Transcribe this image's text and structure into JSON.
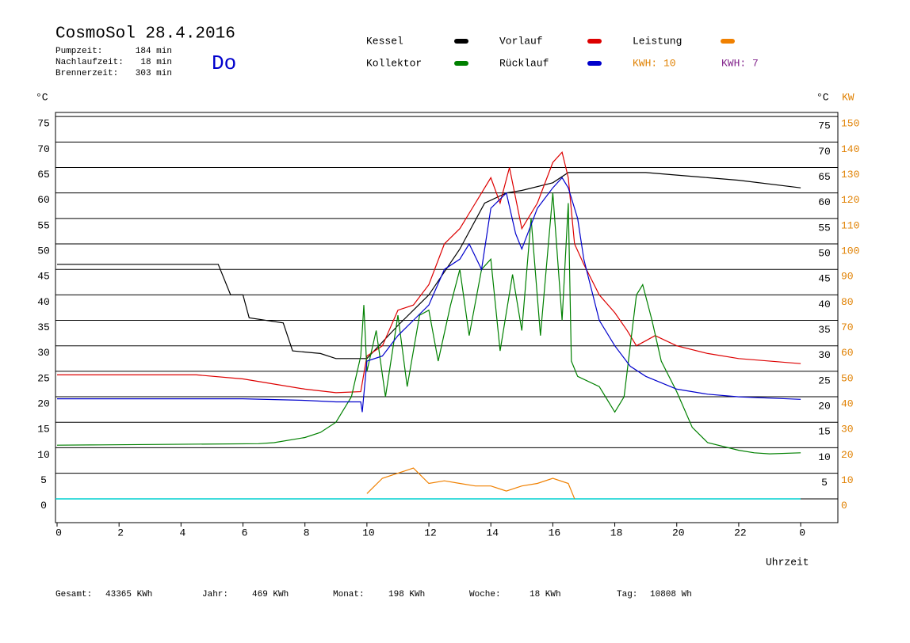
{
  "header": {
    "title": "CosmoSol 28.4.2016",
    "day": "Do",
    "stats": [
      {
        "label": "Pumpzeit:",
        "value": "184 min"
      },
      {
        "label": "Nachlaufzeit:",
        "value": "18 min"
      },
      {
        "label": "Brennerzeit:",
        "value": "303 min"
      }
    ],
    "kwh": [
      {
        "text": "KWH: 10",
        "color": "#e08000"
      },
      {
        "text": "KWH: 7",
        "color": "#80208a"
      }
    ]
  },
  "footer": [
    {
      "label": "Gesamt:",
      "value": "43365 KWh"
    },
    {
      "label": "Jahr:",
      "value": "469 KWh"
    },
    {
      "label": "Monat:",
      "value": "198 KWh"
    },
    {
      "label": "Woche:",
      "value": "18 KWh"
    },
    {
      "label": "Tag:",
      "value": "10808 Wh"
    }
  ],
  "chart_data": {
    "type": "line",
    "ylabel": "°C",
    "y2label_left": "°C",
    "y2label": "KW",
    "xlabel": "Uhrzeit",
    "xlim": [
      0,
      25.2
    ],
    "ylim": [
      -4.7,
      75.8
    ],
    "y2lim": [
      -9.4,
      151.6
    ],
    "xticks": [
      0,
      2,
      4,
      6,
      8,
      10,
      12,
      14,
      16,
      18,
      20,
      22,
      {
        "value": 24,
        "label": "0"
      }
    ],
    "yticks": [
      0,
      5,
      10,
      15,
      20,
      25,
      30,
      35,
      40,
      45,
      50,
      55,
      60,
      65,
      70,
      75
    ],
    "yticks_right": [
      5,
      10,
      15,
      20,
      25,
      30,
      35,
      40,
      45,
      50,
      55,
      60,
      65,
      70,
      75
    ],
    "y2ticks": [
      0,
      10,
      20,
      30,
      40,
      50,
      60,
      70,
      80,
      90,
      100,
      110,
      120,
      130,
      140,
      150
    ],
    "grid": true,
    "series": [
      {
        "name": "Kessel",
        "color": "#000000",
        "x": [
          0,
          5.2,
          5.6,
          6,
          6.2,
          7.3,
          7.6,
          8.5,
          9,
          10,
          11,
          12,
          13,
          13.8,
          14.5,
          15,
          16,
          16.5,
          17,
          19,
          20,
          21,
          22,
          24
        ],
        "values": [
          46,
          46,
          40,
          40,
          35.5,
          34.5,
          29,
          28.5,
          27.5,
          27.5,
          34,
          40,
          49,
          58,
          60,
          60.5,
          62,
          64,
          64,
          64,
          63.5,
          63,
          62.5,
          61
        ]
      },
      {
        "name": "Vorlauf",
        "color": "#dd0000",
        "x": [
          0,
          4.5,
          6,
          8,
          9,
          9.8,
          10,
          10.5,
          11,
          11.5,
          12,
          12.5,
          13,
          13.5,
          14,
          14.3,
          14.6,
          15,
          15.5,
          16,
          16.3,
          16.5,
          16.7,
          17,
          17.5,
          18,
          18.4,
          18.7,
          19,
          19.3,
          20,
          21,
          22,
          24
        ],
        "values": [
          24.3,
          24.3,
          23.5,
          21.5,
          20.8,
          21,
          28,
          30,
          37,
          38,
          42,
          50,
          53,
          58,
          63,
          58,
          65,
          53,
          58,
          66,
          68,
          63,
          50,
          46,
          40,
          36.5,
          33,
          30,
          31,
          32,
          30,
          28.5,
          27.5,
          26.5
        ]
      },
      {
        "name": "Kollektor",
        "color": "#008000",
        "x": [
          0,
          6.5,
          7,
          8,
          8.5,
          9,
          9.5,
          9.8,
          9.9,
          10,
          10.3,
          10.6,
          11,
          11.3,
          11.7,
          12,
          12.3,
          12.7,
          13,
          13.3,
          13.7,
          14,
          14.3,
          14.7,
          15,
          15.3,
          15.6,
          16,
          16.3,
          16.5,
          16.6,
          16.8,
          17.5,
          18,
          18.3,
          18.7,
          18.9,
          19.2,
          19.5,
          20,
          20.5,
          21,
          22,
          22.5,
          23,
          24
        ],
        "values": [
          10.5,
          10.8,
          11,
          12,
          13,
          15,
          20,
          28,
          38,
          25,
          33,
          20,
          36,
          22,
          36,
          37,
          27,
          38,
          45,
          32,
          45,
          47,
          29,
          44,
          33,
          55,
          32,
          60,
          35,
          58,
          27,
          24,
          22,
          17,
          20,
          40,
          42,
          35,
          27,
          21,
          14,
          11,
          9.5,
          9,
          8.8,
          9
        ]
      },
      {
        "name": "Rücklauf",
        "color": "#0000cc",
        "x": [
          0,
          6,
          8,
          9,
          9.8,
          9.85,
          10,
          10.5,
          11,
          11.5,
          12,
          12.5,
          13,
          13.3,
          13.7,
          14,
          14.5,
          14.8,
          15,
          15.5,
          16,
          16.3,
          16.5,
          16.8,
          17,
          17.5,
          18,
          18.5,
          19,
          20,
          21,
          22,
          24
        ],
        "values": [
          19.6,
          19.6,
          19.3,
          19,
          19,
          17,
          27,
          28,
          32,
          35,
          38,
          45,
          47,
          50,
          45,
          57,
          60,
          52,
          49,
          57,
          61,
          63,
          61,
          55,
          47,
          35,
          30,
          26,
          24,
          21.5,
          20.5,
          20,
          19.5
        ]
      },
      {
        "name": "Leistung",
        "color": "#f08000",
        "axis": "y2",
        "x": [
          10,
          10.5,
          11,
          11.5,
          12,
          12.5,
          13,
          13.5,
          14,
          14.5,
          15,
          15.5,
          16,
          16.5,
          16.7
        ],
        "values": [
          2,
          8,
          10,
          12,
          6,
          7,
          6,
          5,
          5,
          3,
          5,
          6,
          8,
          6,
          0
        ]
      }
    ]
  }
}
